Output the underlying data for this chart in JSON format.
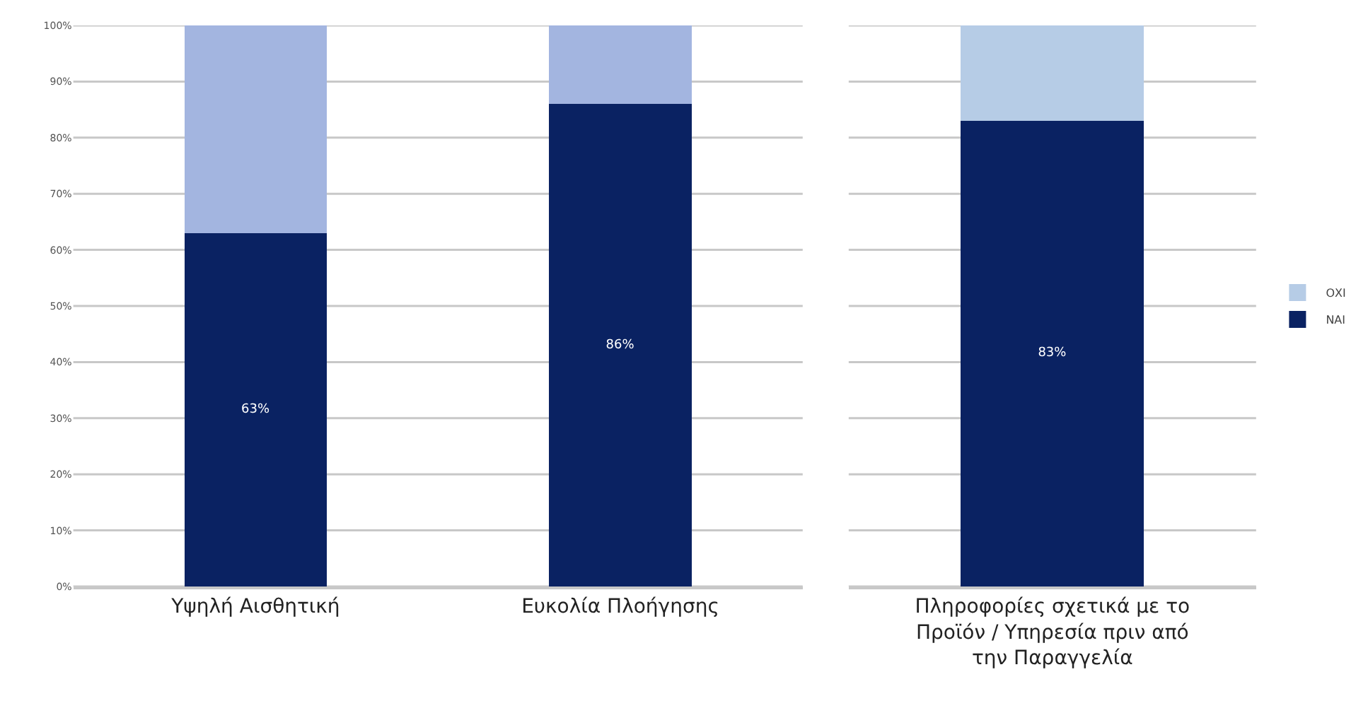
{
  "chart_data": [
    {
      "type": "bar",
      "stacked": true,
      "categories": [
        "Υψηλή Αισθητική",
        "Ευκολία Πλοήγησης"
      ],
      "series": [
        {
          "color": "#0a2262",
          "values": [
            63,
            86
          ],
          "value_labels": [
            "63%",
            "86%"
          ]
        },
        {
          "color": "#a3b5e0",
          "values": [
            37,
            14
          ]
        }
      ],
      "ylim": [
        0,
        100
      ],
      "yticks": [
        {
          "value": 0,
          "label": "0%"
        },
        {
          "value": 10,
          "label": "10%"
        },
        {
          "value": 20,
          "label": "20%"
        },
        {
          "value": 30,
          "label": "30%"
        },
        {
          "value": 40,
          "label": "40%"
        },
        {
          "value": 50,
          "label": "50%"
        },
        {
          "value": 60,
          "label": "60%"
        },
        {
          "value": 70,
          "label": "70%"
        },
        {
          "value": 80,
          "label": "80%"
        },
        {
          "value": 90,
          "label": "90%"
        },
        {
          "value": 100,
          "label": "100%"
        }
      ],
      "grid": "y",
      "legend": false
    },
    {
      "type": "bar",
      "stacked": true,
      "categories": [
        "Πληροφορίες σχετικά με το Προϊόν / Υπηρεσία πριν από την Παραγγελία"
      ],
      "series": [
        {
          "name": "ΝΑΙ",
          "color": "#0a2262",
          "values": [
            83
          ],
          "value_labels": [
            "83%"
          ]
        },
        {
          "name": "ΟΧΙ",
          "color": "#b6cce6",
          "values": [
            17
          ]
        }
      ],
      "ylim": [
        0,
        100
      ],
      "yticks": [
        {
          "value": 0,
          "label": null
        },
        {
          "value": 10,
          "label": null
        },
        {
          "value": 20,
          "label": null
        },
        {
          "value": 30,
          "label": null
        },
        {
          "value": 40,
          "label": null
        },
        {
          "value": 50,
          "label": null
        },
        {
          "value": 60,
          "label": null
        },
        {
          "value": 70,
          "label": null
        },
        {
          "value": 80,
          "label": null
        },
        {
          "value": 90,
          "label": null
        },
        {
          "value": 100,
          "label": null
        }
      ],
      "grid": "y",
      "tick_labels": "x",
      "legend": "right"
    }
  ]
}
